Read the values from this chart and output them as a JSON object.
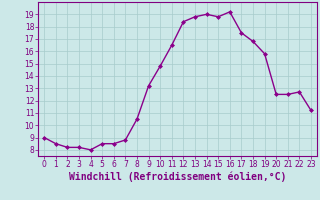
{
  "x": [
    0,
    1,
    2,
    3,
    4,
    5,
    6,
    7,
    8,
    9,
    10,
    11,
    12,
    13,
    14,
    15,
    16,
    17,
    18,
    19,
    20,
    21,
    22,
    23
  ],
  "y": [
    9.0,
    8.5,
    8.2,
    8.2,
    8.0,
    8.5,
    8.5,
    8.8,
    10.5,
    13.2,
    14.8,
    16.5,
    18.4,
    18.8,
    19.0,
    18.8,
    19.2,
    17.5,
    16.8,
    15.8,
    12.5,
    12.5,
    12.7,
    11.2
  ],
  "line_color": "#8B008B",
  "marker": "D",
  "marker_size": 2,
  "line_width": 1.0,
  "background_color": "#cce8e8",
  "grid_color": "#a8cccc",
  "xlabel": "Windchill (Refroidissement éolien,°C)",
  "xlabel_fontsize": 7,
  "ylim": [
    7.5,
    20.0
  ],
  "xlim": [
    -0.5,
    23.5
  ],
  "yticks": [
    8,
    9,
    10,
    11,
    12,
    13,
    14,
    15,
    16,
    17,
    18,
    19
  ],
  "xticks": [
    0,
    1,
    2,
    3,
    4,
    5,
    6,
    7,
    8,
    9,
    10,
    11,
    12,
    13,
    14,
    15,
    16,
    17,
    18,
    19,
    20,
    21,
    22,
    23
  ],
  "tick_fontsize": 5.5,
  "tick_color": "#800080",
  "spine_color": "#800080"
}
